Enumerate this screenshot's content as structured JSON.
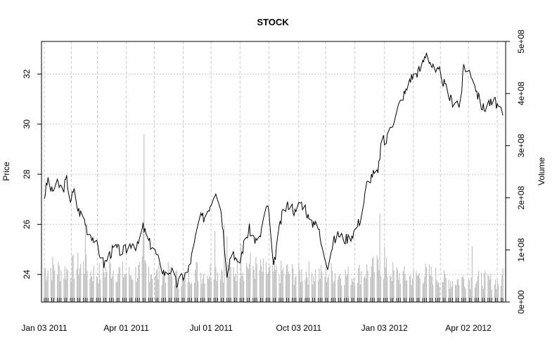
{
  "chart_data": {
    "type": "line",
    "title": "STOCK",
    "xlabel": "",
    "ylabel": "Price",
    "y2label": "Volume",
    "ylim": [
      22.9,
      33.3
    ],
    "y2lim": [
      0,
      500000000
    ],
    "y_ticks": [
      {
        "value": 24,
        "label": "24"
      },
      {
        "value": 26,
        "label": "26"
      },
      {
        "value": 28,
        "label": "28"
      },
      {
        "value": 30,
        "label": "30"
      },
      {
        "value": 32,
        "label": "32"
      }
    ],
    "y2_ticks": [
      {
        "value": 0,
        "label": "0e+00"
      },
      {
        "value": 100000000,
        "label": "1e+08"
      },
      {
        "value": 200000000,
        "label": "2e+08"
      },
      {
        "value": 300000000,
        "label": "3e+08"
      },
      {
        "value": 400000000,
        "label": "4e+08"
      },
      {
        "value": 500000000,
        "label": "5e+08"
      }
    ],
    "x_range_days": [
      -3,
      495
    ],
    "x_ticks": [
      {
        "day": 0,
        "label": "Jan 03 2011"
      },
      {
        "day": 88,
        "label": "Apr 01 2011"
      },
      {
        "day": 179,
        "label": "Jul 01 2011"
      },
      {
        "day": 273,
        "label": "Oct 03 2011"
      },
      {
        "day": 365,
        "label": "Jan 03 2012"
      },
      {
        "day": 455,
        "label": "Apr 02 2012"
      }
    ],
    "grid_days": [
      0,
      29,
      57,
      88,
      118,
      149,
      179,
      210,
      241,
      273,
      302,
      333,
      365,
      396,
      425,
      455,
      486
    ],
    "price_series": {
      "name": "Close",
      "color": "#000000",
      "days": [
        0,
        4,
        8,
        14,
        20,
        24,
        28,
        32,
        36,
        43,
        46,
        52,
        58,
        64,
        70,
        76,
        82,
        88,
        94,
        100,
        106,
        112,
        118,
        124,
        130,
        136,
        142,
        148,
        154,
        160,
        166,
        172,
        178,
        184,
        190,
        196,
        202,
        208,
        214,
        220,
        226,
        230,
        234,
        240,
        246,
        250,
        256,
        262,
        266,
        270,
        274,
        280,
        286,
        292,
        298,
        304,
        310,
        316,
        322,
        328,
        334,
        340,
        346,
        352,
        358,
        362,
        366,
        372,
        376,
        380,
        384,
        388,
        392,
        398,
        404,
        410,
        416,
        420,
        424,
        430,
        434,
        438,
        442,
        446,
        450,
        456,
        460,
        464,
        468,
        472,
        476,
        480,
        484,
        488,
        492
      ],
      "values": [
        27.1,
        27.8,
        27.3,
        27.6,
        27.4,
        27.8,
        27.0,
        27.3,
        26.6,
        26.2,
        25.8,
        25.5,
        25.0,
        24.4,
        24.8,
        25.1,
        24.9,
        25.0,
        25.3,
        25.1,
        25.9,
        25.3,
        25.0,
        24.4,
        24.0,
        24.2,
        23.6,
        23.9,
        24.1,
        25.0,
        26.2,
        26.3,
        26.8,
        27.4,
        26.5,
        24.1,
        25.1,
        24.2,
        25.2,
        25.8,
        25.4,
        25.2,
        26.0,
        26.8,
        24.2,
        25.4,
        26.5,
        26.8,
        26.7,
        26.4,
        26.9,
        26.7,
        25.9,
        26.3,
        25.0,
        24.4,
        25.3,
        25.6,
        25.4,
        25.5,
        25.8,
        26.3,
        27.6,
        28.0,
        28.0,
        29.5,
        29.2,
        30.0,
        30.2,
        30.7,
        31.1,
        31.3,
        31.8,
        32.0,
        32.2,
        32.9,
        32.3,
        32.0,
        32.1,
        31.5,
        31.1,
        30.9,
        31.0,
        30.6,
        32.3,
        32.1,
        31.9,
        31.3,
        30.8,
        30.6,
        30.9,
        30.8,
        30.9,
        30.6,
        30.3
      ]
    },
    "volume_series": {
      "name": "Volume",
      "color": "#bebebe",
      "anchor_days": [
        0,
        10,
        20,
        30,
        40,
        50,
        60,
        70,
        80,
        90,
        100,
        110,
        120,
        130,
        140,
        150,
        160,
        170,
        180,
        190,
        200,
        210,
        220,
        230,
        240,
        250,
        260,
        270,
        280,
        290,
        300,
        310,
        320,
        330,
        340,
        350,
        360,
        370,
        380,
        390,
        400,
        410,
        420,
        430,
        440,
        450,
        460,
        470,
        480,
        490
      ],
      "anchor_values": [
        65000000,
        70000000,
        62000000,
        68000000,
        75000000,
        60000000,
        58000000,
        70000000,
        62000000,
        55000000,
        60000000,
        72000000,
        55000000,
        60000000,
        50000000,
        42000000,
        65000000,
        58000000,
        62000000,
        68000000,
        60000000,
        70000000,
        75000000,
        65000000,
        60000000,
        58000000,
        62000000,
        55000000,
        60000000,
        58000000,
        55000000,
        60000000,
        55000000,
        52000000,
        60000000,
        65000000,
        70000000,
        62000000,
        55000000,
        50000000,
        52000000,
        58000000,
        52000000,
        45000000,
        42000000,
        48000000,
        44000000,
        46000000,
        42000000,
        40000000
      ],
      "spikes": [
        {
          "day": 44,
          "value": 150000000
        },
        {
          "day": 107,
          "value": 322000000
        },
        {
          "day": 106,
          "value": 135000000
        },
        {
          "day": 183,
          "value": 136000000
        },
        {
          "day": 193,
          "value": 148000000
        },
        {
          "day": 196,
          "value": 126000000
        },
        {
          "day": 211,
          "value": 112000000
        },
        {
          "day": 236,
          "value": 112000000
        },
        {
          "day": 360,
          "value": 170000000
        },
        {
          "day": 365,
          "value": 106000000
        },
        {
          "day": 459,
          "value": 108000000
        },
        {
          "day": 492,
          "value": 65000000
        }
      ]
    }
  }
}
